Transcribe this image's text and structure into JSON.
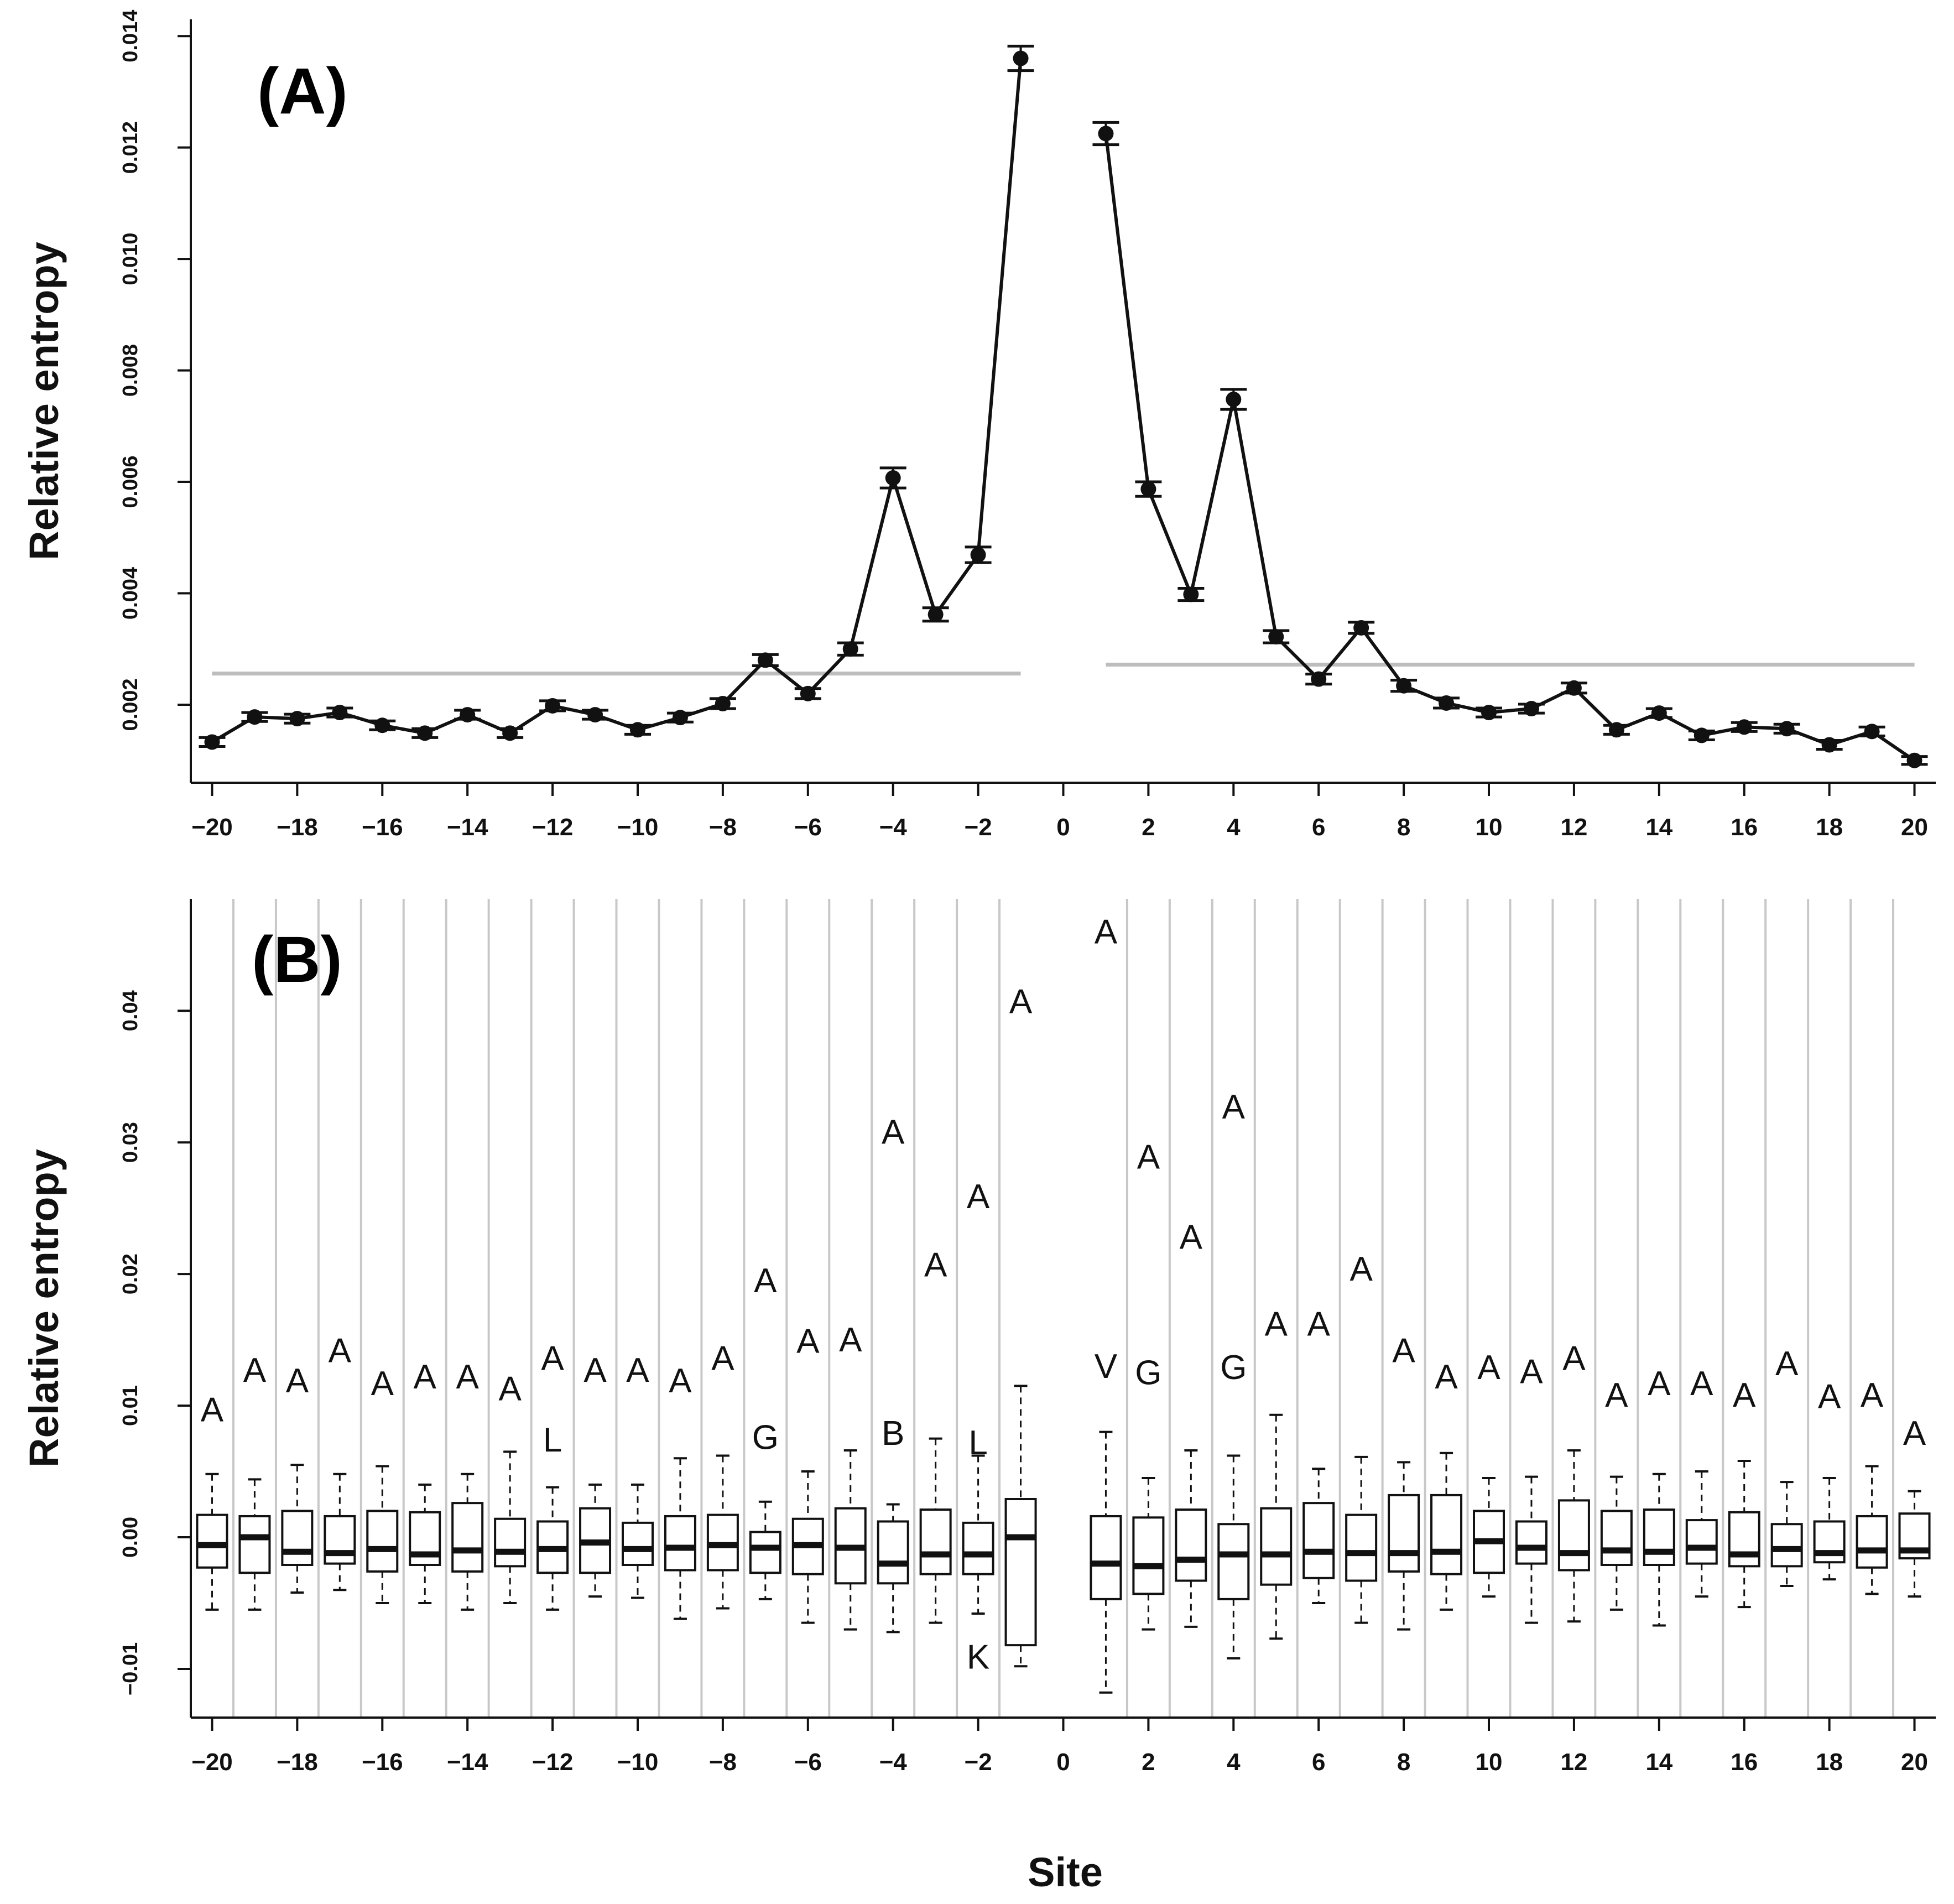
{
  "figure": {
    "x_title": "Site",
    "x_ticks": [
      "−20",
      "−18",
      "−16",
      "−14",
      "−12",
      "−10",
      "−8",
      "−6",
      "−4",
      "−2",
      "0",
      "2",
      "4",
      "6",
      "8",
      "10",
      "12",
      "14",
      "16",
      "18",
      "20"
    ]
  },
  "chart_data": [
    {
      "type": "line",
      "panel_label": "(A)",
      "ylabel": "Relative entropy",
      "xlabel": "",
      "ylim": [
        0.0006,
        0.0143
      ],
      "xlim": [
        -20.5,
        20.5
      ],
      "y_ticks": [
        "0.002",
        "0.004",
        "0.006",
        "0.008",
        "0.010",
        "0.012",
        "0.014"
      ],
      "error_bars": true,
      "segments": [
        {
          "x": [
            -20,
            -19,
            -18,
            -17,
            -16,
            -15,
            -14,
            -13,
            -12,
            -11,
            -10,
            -9,
            -8,
            -7,
            -6,
            -5,
            -4,
            -3,
            -2,
            -1
          ],
          "y": [
            0.00133,
            0.00178,
            0.00175,
            0.00186,
            0.00163,
            0.00149,
            0.00182,
            0.00149,
            0.00198,
            0.00182,
            0.00155,
            0.00177,
            0.00202,
            0.0028,
            0.0022,
            0.003,
            0.00607,
            0.00362,
            0.00469,
            0.0136
          ],
          "err": [
            8e-05,
            8e-05,
            8e-05,
            8e-05,
            8e-05,
            8e-05,
            8e-05,
            8e-05,
            9e-05,
            8e-05,
            8e-05,
            8e-05,
            9e-05,
            0.0001,
            9e-05,
            0.00011,
            0.00018,
            0.00012,
            0.00014,
            0.00022
          ]
        },
        {
          "x": [
            1,
            2,
            3,
            4,
            5,
            6,
            7,
            8,
            9,
            10,
            11,
            12,
            13,
            14,
            15,
            16,
            17,
            18,
            19,
            20
          ],
          "y": [
            0.01225,
            0.00587,
            0.00398,
            0.00748,
            0.00322,
            0.00246,
            0.00338,
            0.00234,
            0.00203,
            0.00186,
            0.00193,
            0.0023,
            0.00155,
            0.00185,
            0.00145,
            0.0016,
            0.00157,
            0.00128,
            0.00152,
            0.001
          ],
          "err": [
            0.0002,
            0.00013,
            0.00011,
            0.00018,
            0.00011,
            9e-05,
            0.0001,
            0.0001,
            9e-05,
            8e-05,
            8e-05,
            9e-05,
            8e-05,
            8e-05,
            8e-05,
            8e-05,
            8e-05,
            8e-05,
            8e-05,
            7e-05
          ]
        }
      ],
      "reference_lines": [
        {
          "x_from": -20,
          "x_to": -1,
          "y": 0.00256
        },
        {
          "x_from": 1,
          "x_to": 20,
          "y": 0.00272
        }
      ]
    },
    {
      "type": "box",
      "panel_label": "(B)",
      "ylabel": "Relative entropy",
      "xlabel": "Site",
      "ylim": [
        -0.0137,
        0.0485
      ],
      "xlim": [
        -20.5,
        20.5
      ],
      "y_ticks": [
        "−0.01",
        "0.00",
        "0.01",
        "0.02",
        "0.03",
        "0.04"
      ],
      "boxes": [
        {
          "site": -20,
          "q1": -0.0023,
          "median": -0.0006,
          "q3": 0.0017,
          "lo": -0.0055,
          "hi": 0.0048
        },
        {
          "site": -19,
          "q1": -0.0027,
          "median": 0.0,
          "q3": 0.0016,
          "lo": -0.0055,
          "hi": 0.0044
        },
        {
          "site": -18,
          "q1": -0.0021,
          "median": -0.0011,
          "q3": 0.002,
          "lo": -0.0042,
          "hi": 0.0055
        },
        {
          "site": -17,
          "q1": -0.002,
          "median": -0.0012,
          "q3": 0.0016,
          "lo": -0.004,
          "hi": 0.0048
        },
        {
          "site": -16,
          "q1": -0.0026,
          "median": -0.0009,
          "q3": 0.002,
          "lo": -0.005,
          "hi": 0.0054
        },
        {
          "site": -15,
          "q1": -0.0021,
          "median": -0.0013,
          "q3": 0.0019,
          "lo": -0.005,
          "hi": 0.004
        },
        {
          "site": -14,
          "q1": -0.0026,
          "median": -0.001,
          "q3": 0.0026,
          "lo": -0.0055,
          "hi": 0.0048
        },
        {
          "site": -13,
          "q1": -0.0022,
          "median": -0.0011,
          "q3": 0.0014,
          "lo": -0.005,
          "hi": 0.0065
        },
        {
          "site": -12,
          "q1": -0.0027,
          "median": -0.0009,
          "q3": 0.0012,
          "lo": -0.0055,
          "hi": 0.0038
        },
        {
          "site": -11,
          "q1": -0.0027,
          "median": -0.0004,
          "q3": 0.0022,
          "lo": -0.0045,
          "hi": 0.004
        },
        {
          "site": -10,
          "q1": -0.0021,
          "median": -0.0009,
          "q3": 0.0011,
          "lo": -0.0046,
          "hi": 0.004
        },
        {
          "site": -9,
          "q1": -0.0025,
          "median": -0.0008,
          "q3": 0.0016,
          "lo": -0.0062,
          "hi": 0.006
        },
        {
          "site": -8,
          "q1": -0.0025,
          "median": -0.0006,
          "q3": 0.0017,
          "lo": -0.0054,
          "hi": 0.0062
        },
        {
          "site": -7,
          "q1": -0.0027,
          "median": -0.0008,
          "q3": 0.0004,
          "lo": -0.0047,
          "hi": 0.0027
        },
        {
          "site": -6,
          "q1": -0.0028,
          "median": -0.0006,
          "q3": 0.0014,
          "lo": -0.0065,
          "hi": 0.005
        },
        {
          "site": -5,
          "q1": -0.0035,
          "median": -0.0008,
          "q3": 0.0022,
          "lo": -0.007,
          "hi": 0.0066
        },
        {
          "site": -4,
          "q1": -0.0035,
          "median": -0.002,
          "q3": 0.0012,
          "lo": -0.0072,
          "hi": 0.0025
        },
        {
          "site": -3,
          "q1": -0.0028,
          "median": -0.0013,
          "q3": 0.0021,
          "lo": -0.0065,
          "hi": 0.0075
        },
        {
          "site": -2,
          "q1": -0.0028,
          "median": -0.0013,
          "q3": 0.0011,
          "lo": -0.0058,
          "hi": 0.0062
        },
        {
          "site": -1,
          "q1": -0.0082,
          "median": 0.0,
          "q3": 0.0029,
          "lo": -0.0098,
          "hi": 0.0115
        },
        {
          "site": 1,
          "q1": -0.0047,
          "median": -0.002,
          "q3": 0.0016,
          "lo": -0.0118,
          "hi": 0.008
        },
        {
          "site": 2,
          "q1": -0.0043,
          "median": -0.0022,
          "q3": 0.0015,
          "lo": -0.007,
          "hi": 0.0045
        },
        {
          "site": 3,
          "q1": -0.0033,
          "median": -0.0017,
          "q3": 0.0021,
          "lo": -0.0068,
          "hi": 0.0066
        },
        {
          "site": 4,
          "q1": -0.0047,
          "median": -0.0013,
          "q3": 0.001,
          "lo": -0.0092,
          "hi": 0.0062
        },
        {
          "site": 5,
          "q1": -0.0036,
          "median": -0.0013,
          "q3": 0.0022,
          "lo": -0.0077,
          "hi": 0.0093
        },
        {
          "site": 6,
          "q1": -0.0031,
          "median": -0.0011,
          "q3": 0.0026,
          "lo": -0.005,
          "hi": 0.0052
        },
        {
          "site": 7,
          "q1": -0.0033,
          "median": -0.0012,
          "q3": 0.0017,
          "lo": -0.0065,
          "hi": 0.0061
        },
        {
          "site": 8,
          "q1": -0.0026,
          "median": -0.0012,
          "q3": 0.0032,
          "lo": -0.007,
          "hi": 0.0057
        },
        {
          "site": 9,
          "q1": -0.0028,
          "median": -0.0011,
          "q3": 0.0032,
          "lo": -0.0055,
          "hi": 0.0064
        },
        {
          "site": 10,
          "q1": -0.0027,
          "median": -0.0003,
          "q3": 0.002,
          "lo": -0.0045,
          "hi": 0.0045
        },
        {
          "site": 11,
          "q1": -0.002,
          "median": -0.0008,
          "q3": 0.0012,
          "lo": -0.0065,
          "hi": 0.0046
        },
        {
          "site": 12,
          "q1": -0.0025,
          "median": -0.0012,
          "q3": 0.0028,
          "lo": -0.0064,
          "hi": 0.0066
        },
        {
          "site": 13,
          "q1": -0.0021,
          "median": -0.001,
          "q3": 0.002,
          "lo": -0.0055,
          "hi": 0.0046
        },
        {
          "site": 14,
          "q1": -0.0021,
          "median": -0.0011,
          "q3": 0.0021,
          "lo": -0.0067,
          "hi": 0.0048
        },
        {
          "site": 15,
          "q1": -0.002,
          "median": -0.0008,
          "q3": 0.0013,
          "lo": -0.0045,
          "hi": 0.005
        },
        {
          "site": 16,
          "q1": -0.0022,
          "median": -0.0013,
          "q3": 0.0019,
          "lo": -0.0053,
          "hi": 0.0058
        },
        {
          "site": 17,
          "q1": -0.0022,
          "median": -0.0009,
          "q3": 0.001,
          "lo": -0.0037,
          "hi": 0.0042
        },
        {
          "site": 18,
          "q1": -0.0019,
          "median": -0.0012,
          "q3": 0.0012,
          "lo": -0.0032,
          "hi": 0.0045
        },
        {
          "site": 19,
          "q1": -0.0023,
          "median": -0.001,
          "q3": 0.0016,
          "lo": -0.0043,
          "hi": 0.0054
        },
        {
          "site": 20,
          "q1": -0.0016,
          "median": -0.001,
          "q3": 0.0018,
          "lo": -0.0045,
          "hi": 0.0035
        }
      ],
      "outlier_letters": [
        {
          "site": -20,
          "letter": "A",
          "value": 0.0095
        },
        {
          "site": -19,
          "letter": "A",
          "value": 0.0125
        },
        {
          "site": -18,
          "letter": "A",
          "value": 0.0117
        },
        {
          "site": -17,
          "letter": "A",
          "value": 0.014
        },
        {
          "site": -16,
          "letter": "A",
          "value": 0.0115
        },
        {
          "site": -15,
          "letter": "A",
          "value": 0.012
        },
        {
          "site": -14,
          "letter": "A",
          "value": 0.012
        },
        {
          "site": -13,
          "letter": "A",
          "value": 0.0111
        },
        {
          "site": -12,
          "letter": "A",
          "value": 0.0134
        },
        {
          "site": -12,
          "letter": "L",
          "value": 0.0072
        },
        {
          "site": -11,
          "letter": "A",
          "value": 0.0125
        },
        {
          "site": -10,
          "letter": "A",
          "value": 0.0125
        },
        {
          "site": -9,
          "letter": "A",
          "value": 0.0117
        },
        {
          "site": -8,
          "letter": "A",
          "value": 0.0134
        },
        {
          "site": -7,
          "letter": "A",
          "value": 0.0193
        },
        {
          "site": -7,
          "letter": "G",
          "value": 0.0074
        },
        {
          "site": -6,
          "letter": "A",
          "value": 0.0147
        },
        {
          "site": -5,
          "letter": "A",
          "value": 0.0148
        },
        {
          "site": -4,
          "letter": "A",
          "value": 0.0306
        },
        {
          "site": -4,
          "letter": "B",
          "value": 0.0077
        },
        {
          "site": -3,
          "letter": "A",
          "value": 0.0205
        },
        {
          "site": -2,
          "letter": "A",
          "value": 0.0257
        },
        {
          "site": -2,
          "letter": "L",
          "value": 0.007
        },
        {
          "site": -2,
          "letter": "K",
          "value": -0.0093
        },
        {
          "site": -1,
          "letter": "A",
          "value": 0.0405
        },
        {
          "site": 1,
          "letter": "A",
          "value": 0.0458
        },
        {
          "site": 1,
          "letter": "V",
          "value": 0.0128
        },
        {
          "site": 2,
          "letter": "A",
          "value": 0.0287
        },
        {
          "site": 2,
          "letter": "G",
          "value": 0.0123
        },
        {
          "site": 3,
          "letter": "A",
          "value": 0.0226
        },
        {
          "site": 4,
          "letter": "A",
          "value": 0.0325
        },
        {
          "site": 4,
          "letter": "G",
          "value": 0.0127
        },
        {
          "site": 5,
          "letter": "A",
          "value": 0.016
        },
        {
          "site": 6,
          "letter": "A",
          "value": 0.016
        },
        {
          "site": 7,
          "letter": "A",
          "value": 0.0202
        },
        {
          "site": 8,
          "letter": "A",
          "value": 0.014
        },
        {
          "site": 9,
          "letter": "A",
          "value": 0.012
        },
        {
          "site": 10,
          "letter": "A",
          "value": 0.0127
        },
        {
          "site": 11,
          "letter": "A",
          "value": 0.0124
        },
        {
          "site": 12,
          "letter": "A",
          "value": 0.0134
        },
        {
          "site": 13,
          "letter": "A",
          "value": 0.0106
        },
        {
          "site": 14,
          "letter": "A",
          "value": 0.0115
        },
        {
          "site": 15,
          "letter": "A",
          "value": 0.0115
        },
        {
          "site": 16,
          "letter": "A",
          "value": 0.0106
        },
        {
          "site": 17,
          "letter": "A",
          "value": 0.013
        },
        {
          "site": 18,
          "letter": "A",
          "value": 0.0105
        },
        {
          "site": 19,
          "letter": "A",
          "value": 0.0106
        },
        {
          "site": 20,
          "letter": "A",
          "value": 0.0077
        }
      ]
    }
  ],
  "colors": {
    "ink": "#111111",
    "grid": "#c8c8c8",
    "reference": "#bdbdbd",
    "background": "#ffffff"
  }
}
